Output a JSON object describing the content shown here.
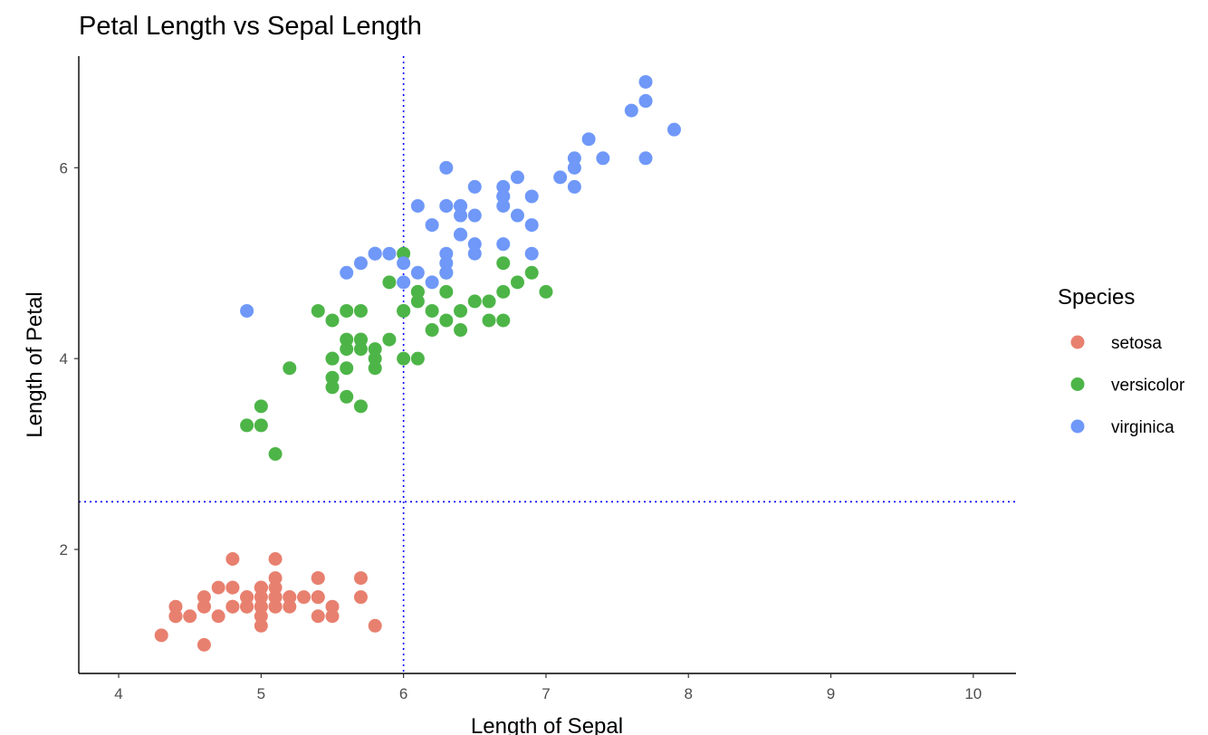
{
  "chart_data": {
    "type": "scatter",
    "title": "Petal Length vs Sepal Length",
    "xlabel": "Length of Sepal",
    "ylabel": "Length of Petal",
    "xlim": [
      3.72,
      10.3
    ],
    "ylim": [
      0.7,
      7.17
    ],
    "xticks": [
      4,
      5,
      6,
      7,
      8,
      9,
      10
    ],
    "yticks": [
      2,
      4,
      6
    ],
    "grid": false,
    "legend": {
      "title": "Species",
      "placement": "right"
    },
    "reference_lines": {
      "vline_x": 6,
      "hline_y": 2.5,
      "color": "#0000FF",
      "style": "dotted"
    },
    "series": [
      {
        "name": "setosa",
        "color": "#E8806F",
        "x": [
          5.1,
          4.9,
          4.7,
          4.6,
          5.0,
          5.4,
          4.6,
          5.0,
          4.4,
          4.9,
          5.4,
          4.8,
          4.8,
          4.3,
          5.8,
          5.7,
          5.4,
          5.1,
          5.7,
          5.1,
          5.4,
          5.1,
          4.6,
          5.1,
          4.8,
          5.0,
          5.0,
          5.2,
          5.2,
          4.7,
          4.8,
          5.4,
          5.2,
          5.5,
          4.9,
          5.0,
          5.5,
          4.9,
          4.4,
          5.1,
          5.0,
          4.5,
          4.4,
          5.0,
          5.1,
          4.8,
          5.1,
          4.6,
          5.3,
          5.0
        ],
        "y": [
          1.4,
          1.4,
          1.3,
          1.5,
          1.4,
          1.7,
          1.4,
          1.5,
          1.4,
          1.5,
          1.5,
          1.6,
          1.4,
          1.1,
          1.2,
          1.5,
          1.3,
          1.4,
          1.7,
          1.5,
          1.7,
          1.5,
          1.0,
          1.7,
          1.9,
          1.6,
          1.6,
          1.5,
          1.4,
          1.6,
          1.6,
          1.5,
          1.5,
          1.4,
          1.5,
          1.2,
          1.3,
          1.4,
          1.3,
          1.5,
          1.3,
          1.3,
          1.3,
          1.6,
          1.9,
          1.4,
          1.6,
          1.4,
          1.5,
          1.4
        ]
      },
      {
        "name": "versicolor",
        "color": "#4DB548",
        "x": [
          7.0,
          6.4,
          6.9,
          5.5,
          6.5,
          5.7,
          6.3,
          4.9,
          6.6,
          5.2,
          5.0,
          5.9,
          6.0,
          6.1,
          5.6,
          6.7,
          5.6,
          5.8,
          6.2,
          5.6,
          5.9,
          6.1,
          6.3,
          6.1,
          6.4,
          6.6,
          6.8,
          6.7,
          6.0,
          5.7,
          5.5,
          5.5,
          5.8,
          6.0,
          5.4,
          6.0,
          6.7,
          6.3,
          5.6,
          5.5,
          5.5,
          6.1,
          5.8,
          5.0,
          5.6,
          5.7,
          5.7,
          6.2,
          5.1,
          5.7
        ],
        "y": [
          4.7,
          4.5,
          4.9,
          4.0,
          4.6,
          4.5,
          4.7,
          3.3,
          4.6,
          3.9,
          3.5,
          4.2,
          4.0,
          4.7,
          3.6,
          4.4,
          4.5,
          4.1,
          4.5,
          3.9,
          4.8,
          4.0,
          4.9,
          4.7,
          4.3,
          4.4,
          4.8,
          5.0,
          4.5,
          3.5,
          3.8,
          3.7,
          3.9,
          5.1,
          4.5,
          4.5,
          4.7,
          4.4,
          4.1,
          4.0,
          4.4,
          4.6,
          4.0,
          3.3,
          4.2,
          4.2,
          4.2,
          4.3,
          3.0,
          4.1
        ]
      },
      {
        "name": "virginica",
        "color": "#6F98F8",
        "x": [
          6.3,
          5.8,
          7.1,
          6.3,
          6.5,
          7.6,
          4.9,
          7.3,
          6.7,
          7.2,
          6.5,
          6.4,
          6.8,
          5.7,
          5.8,
          6.4,
          6.5,
          7.7,
          7.7,
          6.0,
          6.9,
          5.6,
          7.7,
          6.3,
          6.7,
          7.2,
          6.2,
          6.1,
          6.4,
          7.2,
          7.4,
          7.9,
          6.4,
          6.3,
          6.1,
          7.7,
          6.3,
          6.4,
          6.0,
          6.9,
          6.7,
          6.9,
          5.8,
          6.8,
          6.7,
          6.7,
          6.3,
          6.5,
          6.2,
          5.9
        ],
        "y": [
          6.0,
          5.1,
          5.9,
          5.6,
          5.8,
          6.6,
          4.5,
          6.3,
          5.8,
          6.1,
          5.1,
          5.3,
          5.5,
          5.0,
          5.1,
          5.3,
          5.5,
          6.7,
          6.9,
          5.0,
          5.7,
          4.9,
          6.7,
          4.9,
          5.7,
          6.0,
          4.8,
          4.9,
          5.6,
          5.8,
          6.1,
          6.4,
          5.6,
          5.1,
          5.6,
          6.1,
          5.6,
          5.5,
          4.8,
          5.4,
          5.6,
          5.1,
          5.1,
          5.9,
          5.7,
          5.2,
          5.0,
          5.2,
          5.4,
          5.1
        ]
      }
    ]
  }
}
